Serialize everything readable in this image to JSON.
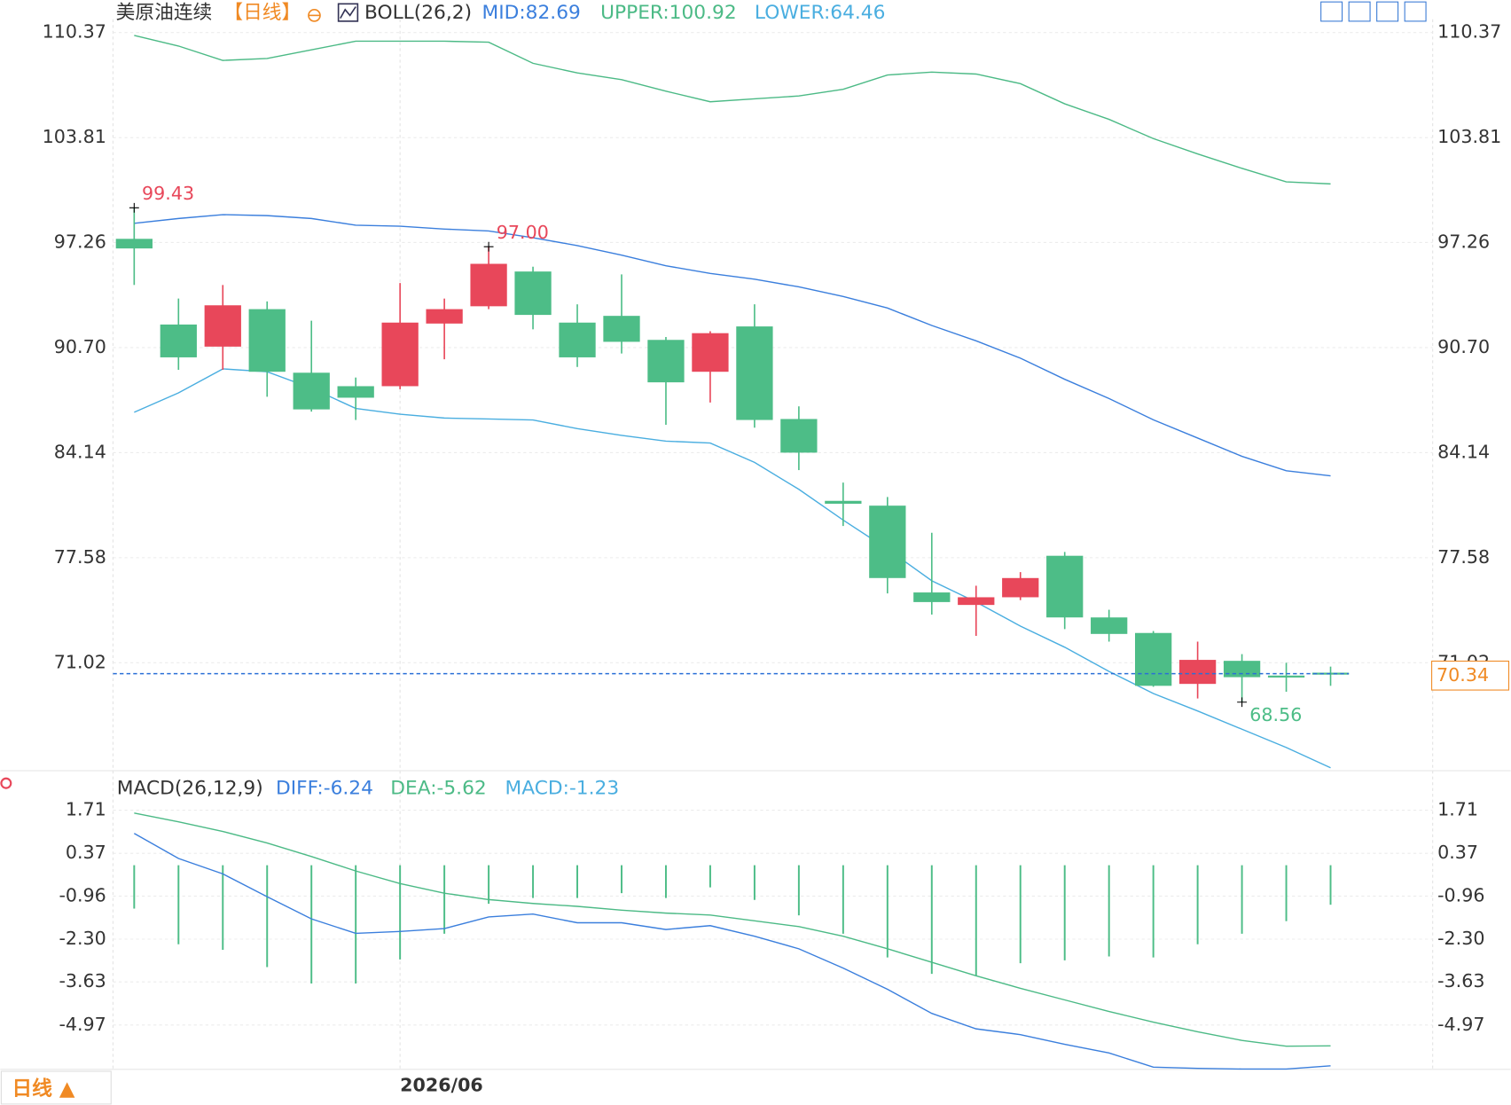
{
  "chart_data": [
    {
      "type": "candlestick",
      "title": "美原油连续",
      "period": "【日线】",
      "indicator": "BOLL(26,2)",
      "categories": [
        null,
        null,
        null,
        null,
        null,
        null,
        "2026/06",
        null,
        null,
        null,
        null,
        null,
        null,
        null,
        null,
        null,
        null,
        null,
        null,
        null,
        null,
        null,
        null,
        null,
        null,
        null,
        null,
        null
      ],
      "open": [
        97.49,
        92.14,
        90.76,
        93.1,
        89.13,
        88.29,
        88.29,
        92.2,
        93.28,
        95.45,
        92.26,
        92.68,
        91.18,
        89.19,
        92.02,
        86.24,
        81.13,
        80.83,
        75.41,
        74.63,
        75.11,
        77.7,
        73.85,
        72.88,
        69.7,
        71.14,
        70.22,
        70.4
      ],
      "high": [
        99.43,
        93.76,
        94.61,
        93.58,
        92.38,
        88.83,
        94.73,
        93.76,
        97.0,
        95.75,
        93.4,
        95.27,
        91.36,
        91.72,
        93.4,
        87.03,
        82.27,
        81.37,
        79.14,
        75.83,
        76.68,
        77.94,
        74.33,
        73.0,
        72.34,
        71.56,
        71.02,
        70.78
      ],
      "low": [
        94.61,
        89.31,
        89.31,
        87.63,
        86.7,
        86.18,
        88.1,
        89.97,
        93.1,
        91.84,
        89.49,
        90.33,
        85.88,
        87.27,
        85.7,
        83.05,
        79.56,
        75.35,
        74.03,
        72.7,
        74.93,
        73.12,
        72.34,
        69.52,
        68.79,
        68.56,
        69.21,
        69.58
      ],
      "close": [
        96.89,
        90.09,
        93.34,
        89.19,
        86.84,
        87.57,
        92.26,
        93.1,
        95.93,
        92.74,
        90.09,
        91.06,
        88.53,
        91.6,
        86.18,
        84.14,
        80.95,
        76.31,
        74.81,
        75.11,
        76.31,
        73.85,
        72.82,
        69.58,
        71.2,
        70.12,
        70.16,
        70.34
      ],
      "high_labels": [
        "99.43",
        null,
        null,
        null,
        null,
        null,
        null,
        null,
        "97.00",
        null,
        null,
        null,
        null,
        null,
        null,
        null,
        null,
        null,
        null,
        null,
        null,
        null,
        null,
        null,
        null,
        null,
        null,
        null
      ],
      "low_labels": [
        null,
        null,
        null,
        null,
        null,
        null,
        null,
        null,
        null,
        null,
        null,
        null,
        null,
        null,
        null,
        null,
        null,
        null,
        null,
        null,
        null,
        null,
        null,
        null,
        null,
        "68.56",
        null,
        null
      ],
      "up_color": "#e8475a",
      "down_color": "#4dbd87",
      "last_price": 70.34,
      "last_price_color": "#f08a24",
      "last_line_color": "#2a6fd6",
      "series": [
        {
          "name": "MID:82.69",
          "color": "#3b7fdd",
          "values": [
            98.46,
            98.76,
            99.0,
            98.94,
            98.76,
            98.34,
            98.28,
            98.1,
            97.98,
            97.56,
            97.07,
            96.47,
            95.81,
            95.33,
            94.97,
            94.49,
            93.89,
            93.17,
            92.08,
            91.12,
            90.04,
            88.72,
            87.52,
            86.19,
            85.05,
            83.91,
            83.01,
            82.69
          ]
        },
        {
          "name": "UPPER:100.92",
          "color": "#4cba86",
          "values": [
            110.19,
            109.53,
            108.63,
            108.75,
            109.29,
            109.83,
            109.83,
            109.83,
            109.77,
            108.45,
            107.85,
            107.43,
            106.71,
            106.05,
            106.23,
            106.41,
            106.83,
            107.72,
            107.9,
            107.78,
            107.18,
            105.92,
            104.95,
            103.75,
            102.79,
            101.89,
            101.05,
            100.92
          ]
        },
        {
          "name": "LOWER:64.46",
          "color": "#4aaee0",
          "values": [
            86.66,
            87.87,
            89.37,
            89.19,
            88.17,
            86.9,
            86.54,
            86.3,
            86.24,
            86.18,
            85.64,
            85.22,
            84.86,
            84.74,
            83.53,
            81.85,
            79.93,
            78.12,
            76.14,
            74.81,
            73.31,
            71.99,
            70.48,
            69.1,
            68.01,
            66.87,
            65.73,
            64.46
          ]
        }
      ],
      "ylim": [
        64.4,
        111.2
      ],
      "yticks": [
        110.37,
        103.81,
        97.26,
        {
          "value": 90.7,
          "label": "90.70"
        },
        84.14,
        77.58,
        71.02
      ],
      "grid": true
    },
    {
      "type": "macd",
      "title": "MACD(26,12,9)",
      "up_color": "#e8475a",
      "down_color": "#4dbd87",
      "series": [
        {
          "name": "DIFF:-6.24",
          "color": "#3b7fdd",
          "values": [
            0.99,
            0.21,
            -0.27,
            -0.98,
            -1.67,
            -2.12,
            -2.06,
            -1.97,
            -1.61,
            -1.52,
            -1.79,
            -1.79,
            -2.0,
            -1.88,
            -2.21,
            -2.6,
            -3.2,
            -3.86,
            -4.61,
            -5.09,
            -5.27,
            -5.57,
            -5.84,
            -6.28,
            -6.32,
            -6.34,
            -6.34,
            -6.24
          ]
        },
        {
          "name": "DEA:-5.62",
          "color": "#4cba86",
          "values": [
            1.62,
            1.35,
            1.05,
            0.69,
            0.27,
            -0.18,
            -0.57,
            -0.87,
            -1.07,
            -1.19,
            -1.28,
            -1.4,
            -1.49,
            -1.55,
            -1.73,
            -1.91,
            -2.21,
            -2.6,
            -3.02,
            -3.44,
            -3.83,
            -4.19,
            -4.55,
            -4.88,
            -5.18,
            -5.45,
            -5.63,
            -5.62
          ]
        },
        {
          "name": "MACD:-1.23",
          "color": "#4aaee0",
          "bars": true,
          "values": [
            -1.35,
            -2.46,
            -2.63,
            -3.17,
            -3.68,
            -3.68,
            -2.93,
            -2.13,
            -1.2,
            -1.02,
            -1.02,
            -0.87,
            -1.02,
            -0.69,
            -1.08,
            -1.56,
            -2.13,
            -2.87,
            -3.38,
            -3.44,
            -3.05,
            -2.96,
            -2.84,
            -2.87,
            -2.46,
            -2.13,
            -1.74,
            -1.23
          ]
        }
      ],
      "ylim": [
        -6.35,
        2.1
      ],
      "yticks": [
        1.71,
        0.37,
        -0.96,
        {
          "value": -2.3,
          "label": "-2.30"
        },
        -3.63,
        -4.97
      ],
      "grid": true
    }
  ],
  "toolbar": {
    "period_button": "日线 ▲"
  }
}
